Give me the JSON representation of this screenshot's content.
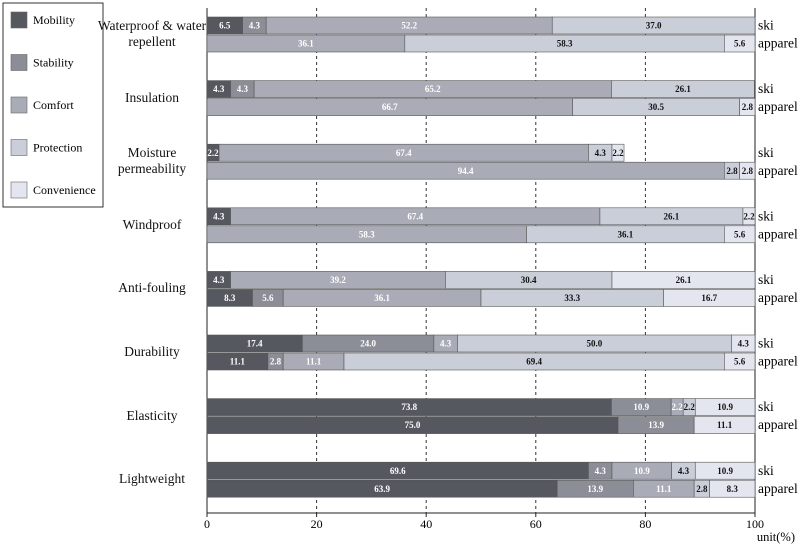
{
  "chart_data": {
    "type": "stacked-bar-horizontal",
    "categories": [
      "Waterproof & water repellent",
      "Insulation",
      "Moisture permeability",
      "Windproof",
      "Anti-fouling",
      "Durability",
      "Elasticity",
      "Lightweight"
    ],
    "subcategories": [
      "ski",
      "apparel"
    ],
    "series": [
      {
        "name": "Mobility",
        "color": "#55585f",
        "values": [
          [
            6.5,
            null
          ],
          [
            4.3,
            null
          ],
          [
            2.2,
            null
          ],
          [
            4.3,
            null
          ],
          [
            4.3,
            8.3
          ],
          [
            17.4,
            11.1
          ],
          [
            73.8,
            75.0
          ],
          [
            69.6,
            63.9
          ]
        ],
        "value_labels": [
          [
            "6.5",
            null
          ],
          [
            "4.3",
            null
          ],
          [
            "2.2",
            null
          ],
          [
            "4.3",
            null
          ],
          [
            "4.3",
            "8.3"
          ],
          [
            "17.4",
            "11.1"
          ],
          [
            "73.8",
            "75.0"
          ],
          [
            "69.6",
            "63.9"
          ]
        ]
      },
      {
        "name": "Stability",
        "color": "#8b8e97",
        "values": [
          [
            4.3,
            null
          ],
          [
            4.3,
            null
          ],
          [
            null,
            null
          ],
          [
            null,
            null
          ],
          [
            null,
            5.6
          ],
          [
            24.0,
            2.8
          ],
          [
            10.9,
            13.9
          ],
          [
            4.3,
            13.9
          ]
        ],
        "value_labels": [
          [
            "4.3",
            null
          ],
          [
            "4.3",
            null
          ],
          [
            null,
            null
          ],
          [
            null,
            null
          ],
          [
            null,
            "5.6"
          ],
          [
            "24.0",
            "2.8"
          ],
          [
            "10.9",
            "13.9"
          ],
          [
            "4.3",
            "13.9"
          ]
        ]
      },
      {
        "name": "Comfort",
        "color": "#a9acb6",
        "values": [
          [
            52.2,
            36.1
          ],
          [
            65.2,
            66.7
          ],
          [
            67.4,
            94.4
          ],
          [
            67.4,
            58.3
          ],
          [
            39.2,
            36.1
          ],
          [
            4.3,
            11.1
          ],
          [
            2.2,
            null
          ],
          [
            10.9,
            11.1
          ]
        ],
        "value_labels": [
          [
            "52.2",
            "36.1"
          ],
          [
            "65.2",
            "66.7"
          ],
          [
            "67.4",
            "94.4"
          ],
          [
            "67.4",
            "58.3"
          ],
          [
            "39.2",
            "36.1"
          ],
          [
            "4.3",
            "11.1"
          ],
          [
            "2.2",
            null
          ],
          [
            "10.9",
            "11.1"
          ]
        ]
      },
      {
        "name": "Protection",
        "color": "#c9ced9",
        "values": [
          [
            37.0,
            58.3
          ],
          [
            26.1,
            30.5
          ],
          [
            4.3,
            2.8
          ],
          [
            26.1,
            36.1
          ],
          [
            30.4,
            33.3
          ],
          [
            50.0,
            69.4
          ],
          [
            2.2,
            null
          ],
          [
            4.3,
            2.8
          ]
        ],
        "value_labels": [
          [
            "37.0",
            "58.3"
          ],
          [
            "26.1",
            "30.5"
          ],
          [
            "4.3",
            "2.8"
          ],
          [
            "26.1",
            "36.1"
          ],
          [
            "30.4",
            "33.3"
          ],
          [
            "50.0",
            "69.4"
          ],
          [
            "2.2",
            null
          ],
          [
            "4.3",
            "2.8"
          ]
        ]
      },
      {
        "name": "Convenience",
        "color": "#e4e6ef",
        "values": [
          [
            null,
            5.6
          ],
          [
            null,
            2.8
          ],
          [
            2.2,
            2.8
          ],
          [
            2.2,
            5.6
          ],
          [
            26.1,
            16.7
          ],
          [
            4.3,
            5.6
          ],
          [
            10.9,
            11.1
          ],
          [
            10.9,
            8.3
          ]
        ],
        "value_labels": [
          [
            null,
            "5.6"
          ],
          [
            null,
            "2.8"
          ],
          [
            "2.2",
            "2.8"
          ],
          [
            "2.2",
            "5.6"
          ],
          [
            "26.1",
            "16.7"
          ],
          [
            "4.3",
            "5.6"
          ],
          [
            "10.9",
            "11.1"
          ],
          [
            "10.9",
            "8.3"
          ]
        ]
      }
    ],
    "xlabel": "unit(%)",
    "xlim": [
      0,
      100
    ],
    "xticks": [
      0,
      20,
      40,
      60,
      80,
      100
    ],
    "grid": true
  }
}
